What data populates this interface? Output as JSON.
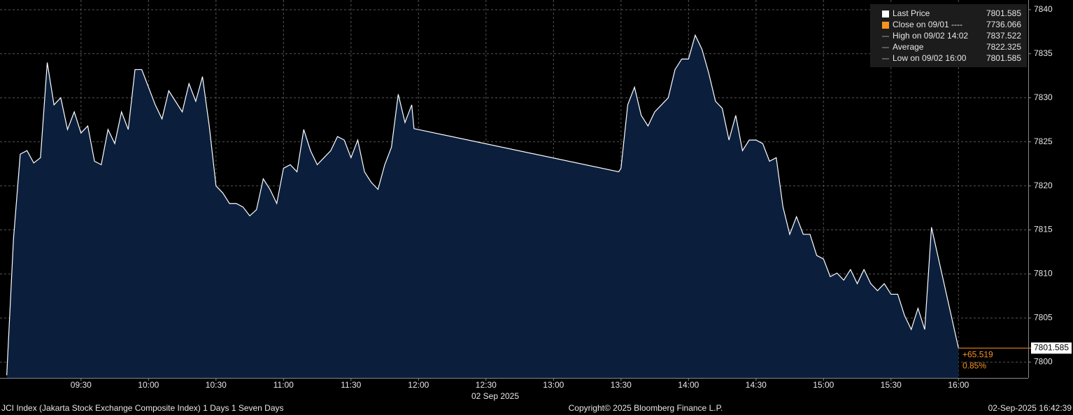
{
  "chart_data": {
    "type": "area",
    "x_label": "02 Sep 2025",
    "x": [
      "08:57",
      "09:00",
      "09:03",
      "09:06",
      "09:09",
      "09:12",
      "09:15",
      "09:18",
      "09:21",
      "09:24",
      "09:27",
      "09:30",
      "09:33",
      "09:36",
      "09:39",
      "09:42",
      "09:45",
      "09:48",
      "09:51",
      "09:54",
      "09:57",
      "10:00",
      "10:03",
      "10:06",
      "10:09",
      "10:12",
      "10:15",
      "10:18",
      "10:21",
      "10:24",
      "10:27",
      "10:30",
      "10:33",
      "10:36",
      "10:39",
      "10:42",
      "10:45",
      "10:48",
      "10:51",
      "10:54",
      "10:57",
      "11:00",
      "11:03",
      "11:06",
      "11:09",
      "11:12",
      "11:15",
      "11:18",
      "11:21",
      "11:24",
      "11:27",
      "11:30",
      "11:33",
      "11:36",
      "11:39",
      "11:42",
      "11:45",
      "11:48",
      "11:51",
      "11:54",
      "11:57",
      "11:58",
      "13:29",
      "13:30",
      "13:33",
      "13:36",
      "13:39",
      "13:42",
      "13:45",
      "13:48",
      "13:51",
      "13:54",
      "13:57",
      "14:00",
      "14:03",
      "14:06",
      "14:09",
      "14:12",
      "14:15",
      "14:18",
      "14:21",
      "14:24",
      "14:27",
      "14:30",
      "14:33",
      "14:36",
      "14:39",
      "14:42",
      "14:45",
      "14:48",
      "14:51",
      "14:54",
      "14:57",
      "15:00",
      "15:03",
      "15:06",
      "15:09",
      "15:12",
      "15:15",
      "15:18",
      "15:21",
      "15:24",
      "15:27",
      "15:30",
      "15:33",
      "15:36",
      "15:39",
      "15:42",
      "15:45",
      "15:48",
      "16:00"
    ],
    "series": [
      {
        "name": "Last Price",
        "color": "#ffffff",
        "fill": "#0b1f3d",
        "values": [
          7798.5,
          7814,
          7823.6,
          7824,
          7822.6,
          7823.2,
          7834,
          7829.2,
          7830,
          7826.4,
          7828.4,
          7826,
          7826.8,
          7822.8,
          7822.4,
          7826.4,
          7824.8,
          7828.4,
          7826.4,
          7833.2,
          7833.2,
          7831.2,
          7829.2,
          7827.6,
          7830.8,
          7829.6,
          7828.4,
          7831.6,
          7829.6,
          7832.4,
          7826.8,
          7820,
          7819.2,
          7818,
          7818,
          7817.6,
          7816.6,
          7817.3,
          7820.8,
          7819.6,
          7818,
          7822,
          7822.4,
          7821.6,
          7826.4,
          7824,
          7822.4,
          7823.2,
          7824,
          7825.6,
          7825.2,
          7823.2,
          7825.2,
          7821.6,
          7820.4,
          7819.6,
          7822.4,
          7824.4,
          7830.4,
          7827.2,
          7829.2,
          7826.5,
          7821.6,
          7822,
          7829.2,
          7831.2,
          7828,
          7826.8,
          7828.4,
          7829.2,
          7830,
          7833.2,
          7834.4,
          7834.4,
          7837.1,
          7835.5,
          7832.8,
          7829.6,
          7828.8,
          7825.2,
          7828,
          7824,
          7825.2,
          7825.2,
          7824.8,
          7822.8,
          7823.2,
          7817.6,
          7814.5,
          7816.5,
          7814.5,
          7814.5,
          7812.1,
          7811.7,
          7809.7,
          7810.1,
          7809.3,
          7810.5,
          7808.9,
          7810.5,
          7808.9,
          7808.1,
          7808.9,
          7807.7,
          7807.7,
          7805.3,
          7803.7,
          7806.1,
          7803.7,
          7815.3,
          7801.585
        ]
      }
    ],
    "xlim": [
      "08:54",
      "16:31"
    ],
    "xticks": [
      "09:30",
      "10:00",
      "10:30",
      "11:00",
      "11:30",
      "12:00",
      "12:30",
      "13:00",
      "13:30",
      "14:00",
      "14:30",
      "15:00",
      "15:30",
      "16:00"
    ],
    "ylim": [
      7798.2,
      7841.1
    ],
    "yticks": [
      7800,
      7805,
      7810,
      7815,
      7820,
      7825,
      7830,
      7835,
      7840
    ],
    "grid": true,
    "last_price": 7801.585,
    "change": {
      "value": 65.519,
      "label": "+65.519"
    },
    "change_pct": {
      "value": 0.85,
      "label": "0.85%"
    },
    "legend": [
      {
        "label": "Last Price",
        "value": 7801.585
      },
      {
        "label": "Close on 09/01 ----",
        "value": 7736.066
      },
      {
        "label": "High on 09/02 14:02",
        "value": 7837.522
      },
      {
        "label": "Average",
        "value": 7822.325
      },
      {
        "label": "Low on 09/02 16:00",
        "value": 7801.585
      }
    ],
    "footer": {
      "left": "JCI Index (Jakarta Stock Exchange Composite Index) 1 Days 1 Seven Days",
      "center": "Copyright© 2025 Bloomberg Finance L.P.",
      "right": "02-Sep-2025 16:42:39"
    }
  }
}
